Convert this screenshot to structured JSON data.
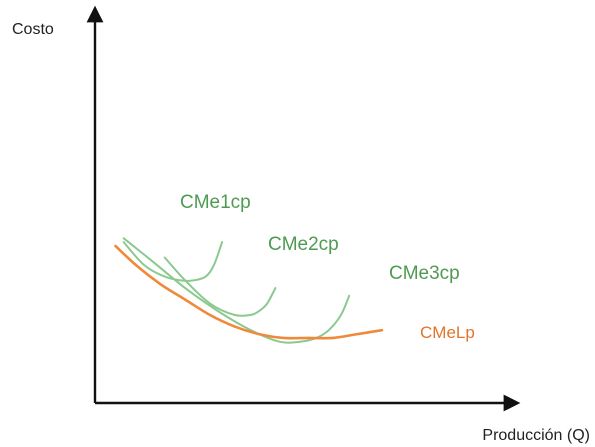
{
  "chart_data": {
    "type": "line",
    "title": "",
    "xlabel": "Producción (Q)",
    "ylabel": "Costo",
    "xlim": [
      0,
      100
    ],
    "ylim": [
      0,
      100
    ],
    "grid": false,
    "legend": "none",
    "series": [
      {
        "name": "CMe1cp",
        "color": "#8cc98f",
        "x": [
          7,
          12,
          17,
          21,
          24,
          27,
          29,
          31
        ],
        "y": [
          42,
          36,
          33,
          32,
          32,
          33,
          36,
          42
        ]
      },
      {
        "name": "CMe2cp",
        "color": "#8cc98f",
        "x": [
          17,
          22,
          28,
          34,
          38,
          40,
          42,
          44
        ],
        "y": [
          38,
          32,
          26,
          23,
          23,
          24,
          26,
          30
        ]
      },
      {
        "name": "CMe3cp",
        "color": "#8cc98f",
        "x": [
          7,
          14,
          22,
          30,
          38,
          45,
          50,
          54,
          57,
          60,
          62
        ],
        "y": [
          43,
          37,
          30,
          24,
          19,
          16,
          16,
          17,
          19,
          23,
          28
        ]
      },
      {
        "name": "CMeLp",
        "color": "#f0893a",
        "x": [
          5,
          10,
          16,
          22,
          28,
          34,
          40,
          46,
          52,
          58,
          64,
          70
        ],
        "y": [
          41,
          36,
          31,
          27,
          23,
          20,
          18,
          17,
          17,
          17,
          18,
          19
        ]
      }
    ]
  }
}
